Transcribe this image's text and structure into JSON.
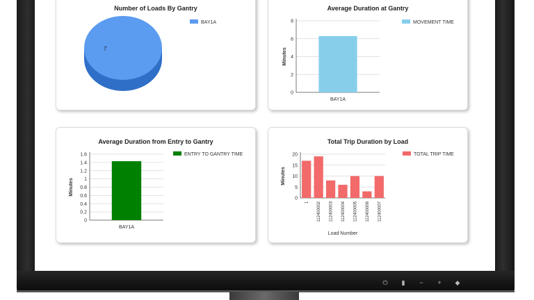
{
  "charts": [
    {
      "type": "pie",
      "title": "Number of Loads By Gantry",
      "legend": [
        "BAY1A"
      ],
      "slices": [
        {
          "label": "BAY1A",
          "value": 7
        }
      ],
      "colors": {
        "series": "#5b9bf0"
      }
    },
    {
      "type": "bar",
      "title": "Average Duration at Gantry",
      "ylabel": "Minutes",
      "legend": [
        "MOVEMENT TIME"
      ],
      "categories": [
        "BAY1A"
      ],
      "values": [
        6.3
      ],
      "ylim": [
        0,
        8
      ],
      "yticks": [
        "0",
        "2",
        "4",
        "6",
        "8"
      ],
      "colors": {
        "series": "#87ceeb"
      }
    },
    {
      "type": "bar",
      "title": "Average Duration from Entry to Gantry",
      "ylabel": "Minutes",
      "legend": [
        "ENTRY TO GANTRY TIME"
      ],
      "categories": [
        "BAY1A"
      ],
      "values": [
        1.43
      ],
      "ylim": [
        0,
        1.6
      ],
      "yticks": [
        "0",
        "0.2",
        "0.4",
        "0.6",
        "0.8",
        "1",
        "1.2",
        "1.4",
        "1.6"
      ],
      "colors": {
        "series": "#008000"
      }
    },
    {
      "type": "bar",
      "title": "Total Trip Duration by Load",
      "ylabel": "Minutes",
      "xlabel": "Load Number",
      "legend": [
        "TOTAL TRIP TIME"
      ],
      "categories": [
        "1",
        "112400002",
        "112400003",
        "112400004",
        "112400005",
        "112400006",
        "112400007"
      ],
      "values": [
        17,
        19,
        8,
        6,
        10,
        3,
        10
      ],
      "ylim": [
        0,
        20
      ],
      "yticks": [
        "0",
        "5",
        "10",
        "15",
        "20"
      ],
      "colors": {
        "series": "#f26a6a"
      }
    }
  ],
  "chart_data": [
    {
      "type": "pie",
      "title": "Number of Loads By Gantry",
      "slices": [
        {
          "label": "BAY1A",
          "value": 7
        }
      ],
      "legend": [
        "BAY1A"
      ]
    },
    {
      "type": "bar",
      "title": "Average Duration at Gantry",
      "ylabel": "Minutes",
      "categories": [
        "BAY1A"
      ],
      "series": [
        {
          "name": "MOVEMENT TIME",
          "values": [
            6.3
          ]
        }
      ],
      "ylim": [
        0,
        8
      ]
    },
    {
      "type": "bar",
      "title": "Average Duration from Entry to Gantry",
      "ylabel": "Minutes",
      "categories": [
        "BAY1A"
      ],
      "series": [
        {
          "name": "ENTRY TO GANTRY TIME",
          "values": [
            1.43
          ]
        }
      ],
      "ylim": [
        0,
        1.6
      ]
    },
    {
      "type": "bar",
      "title": "Total Trip Duration by Load",
      "ylabel": "Minutes",
      "xlabel": "Load Number",
      "categories": [
        "1",
        "112400002",
        "112400003",
        "112400004",
        "112400005",
        "112400006",
        "112400007"
      ],
      "series": [
        {
          "name": "TOTAL TRIP TIME",
          "values": [
            17,
            19,
            8,
            6,
            10,
            3,
            10
          ]
        }
      ],
      "ylim": [
        0,
        20
      ]
    }
  ]
}
